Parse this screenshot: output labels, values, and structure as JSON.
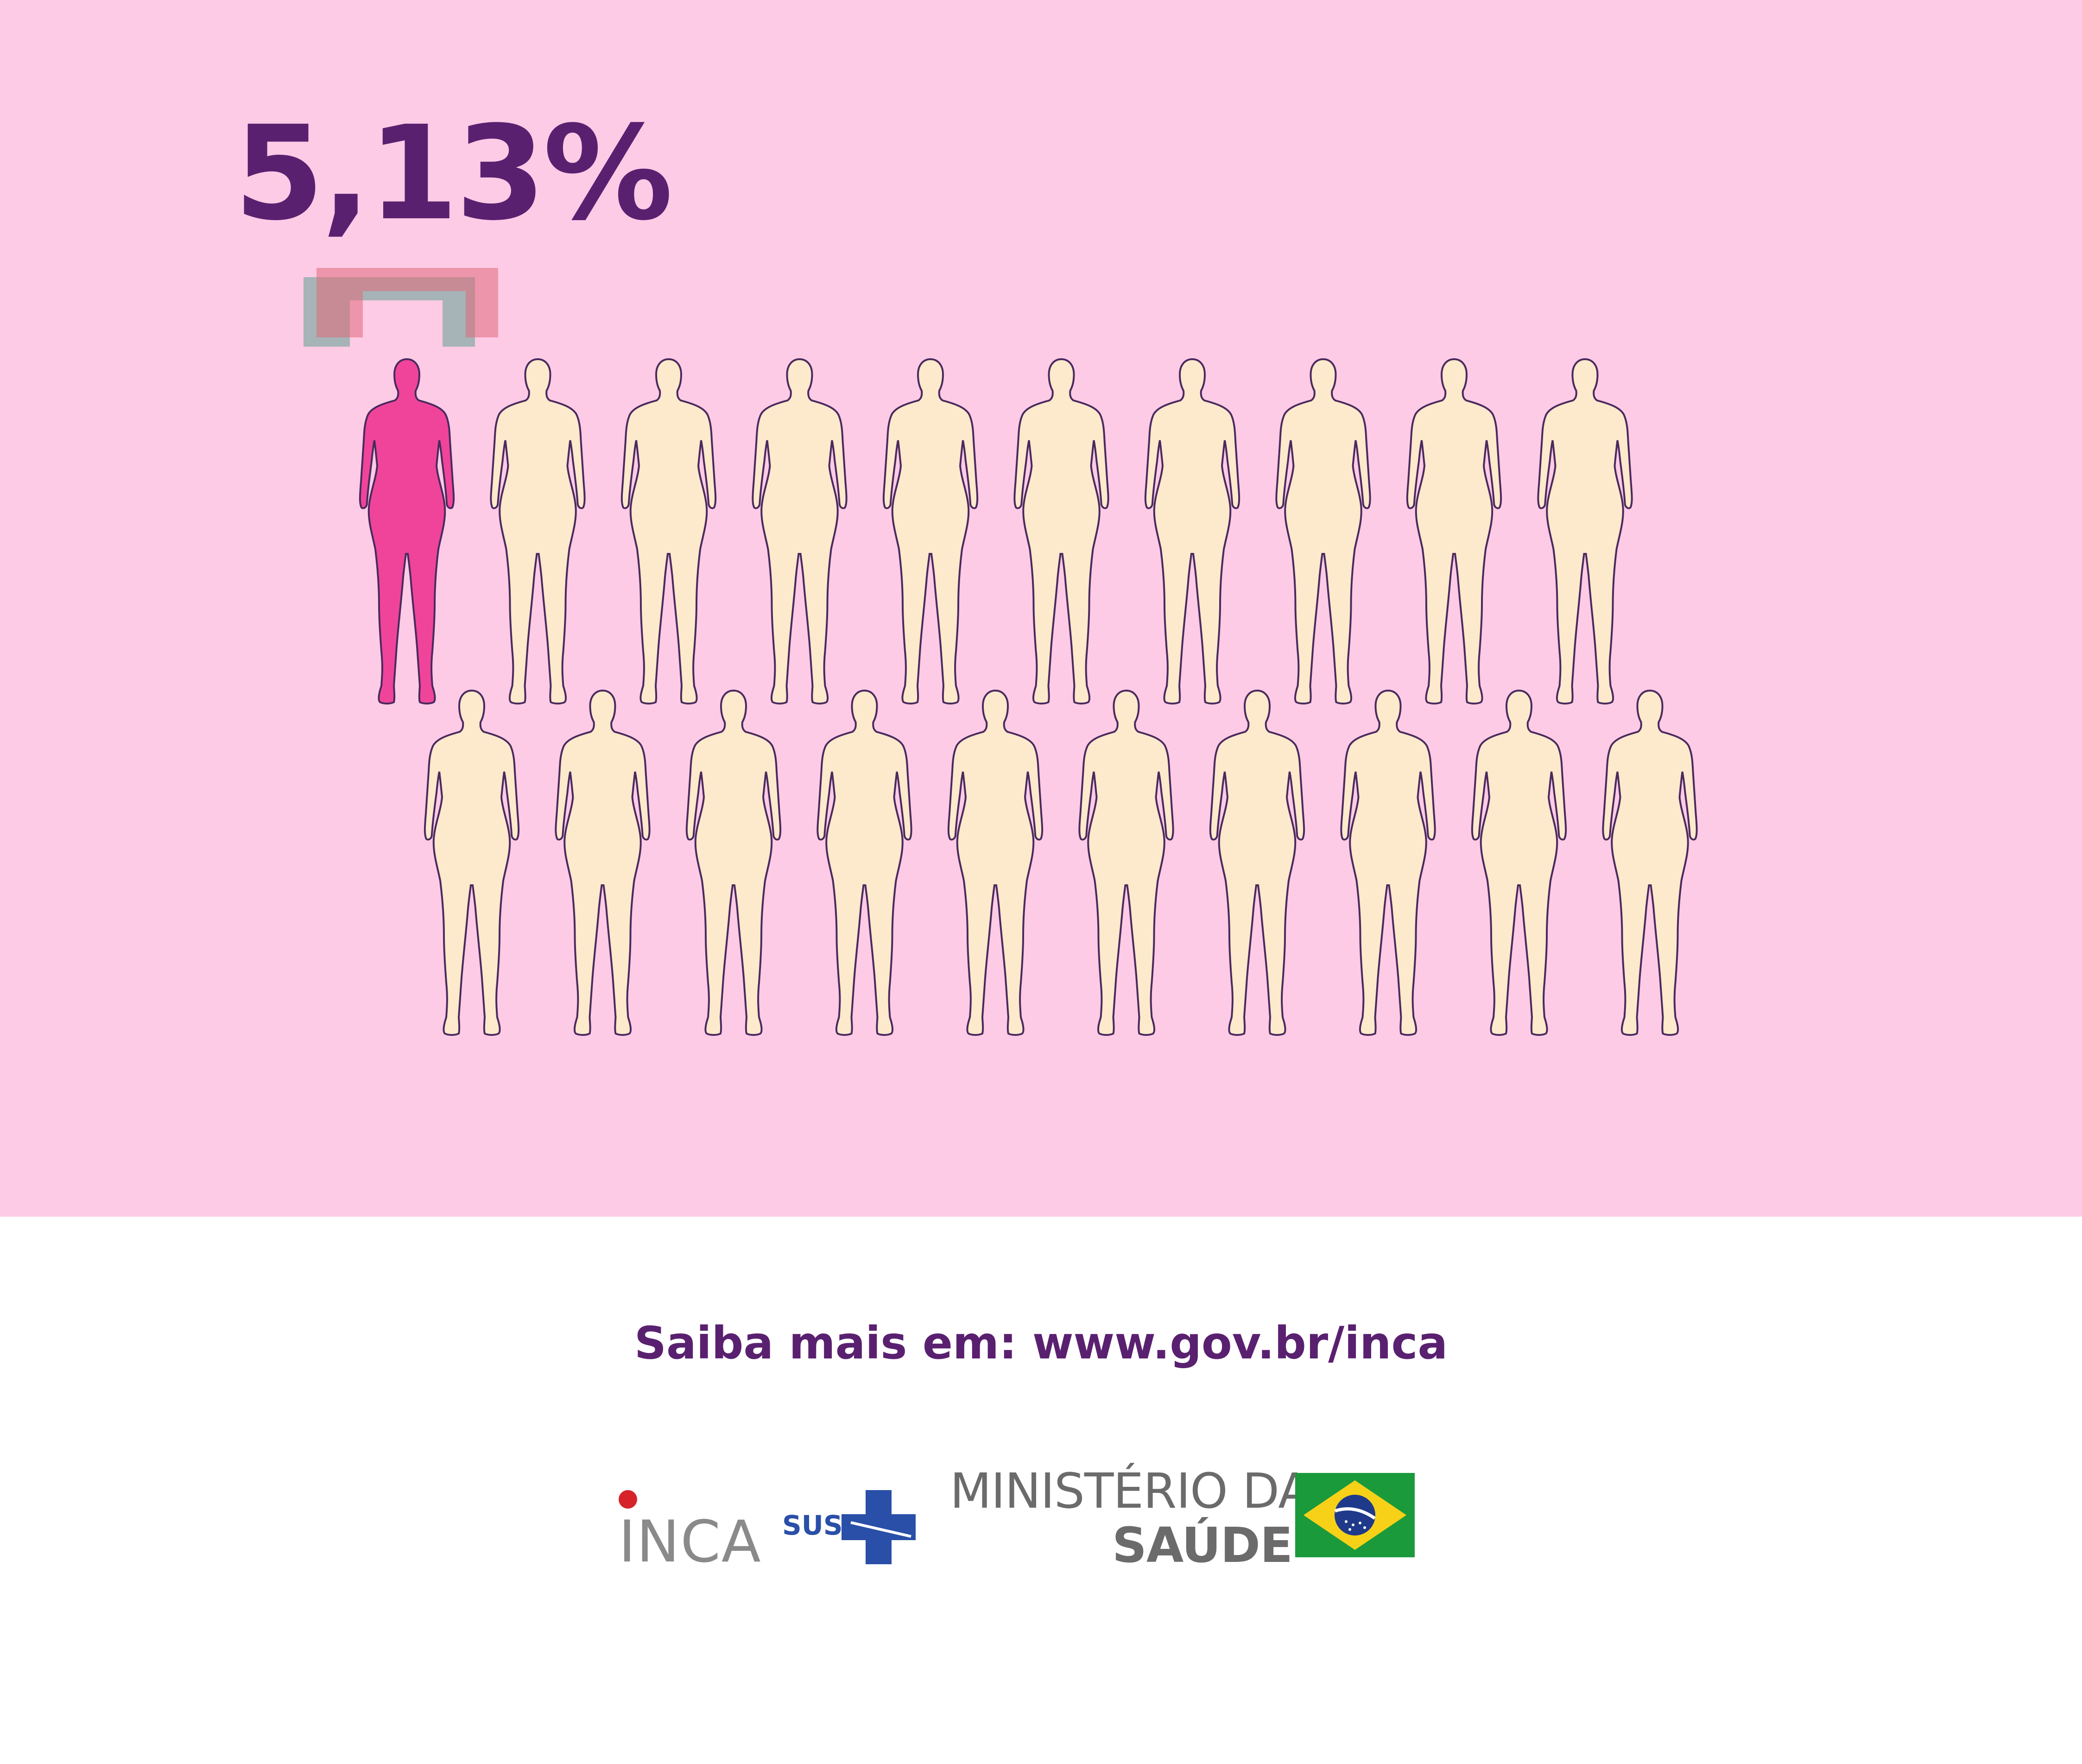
{
  "chart_data": {
    "type": "pictogram",
    "value_label": "5,13%",
    "total_figures": 20,
    "highlighted_figures": 1,
    "rows": 2,
    "figures_per_row": 10,
    "highlight_color": "#f0449a",
    "figure_color": "#fde9cc",
    "outline_color": "#4a2a5e"
  },
  "footer": {
    "text": "Saiba mais em: www.gov.br/inca"
  },
  "logos": {
    "inca": "INCA",
    "sus": "SUS",
    "ministerio_line1": "MINISTÉRIO DA",
    "ministerio_line2": "SAÚDE",
    "flag": "brazil-flag-icon"
  },
  "colors": {
    "panel_bg": "#fdcbe6",
    "title": "#5a2070"
  }
}
